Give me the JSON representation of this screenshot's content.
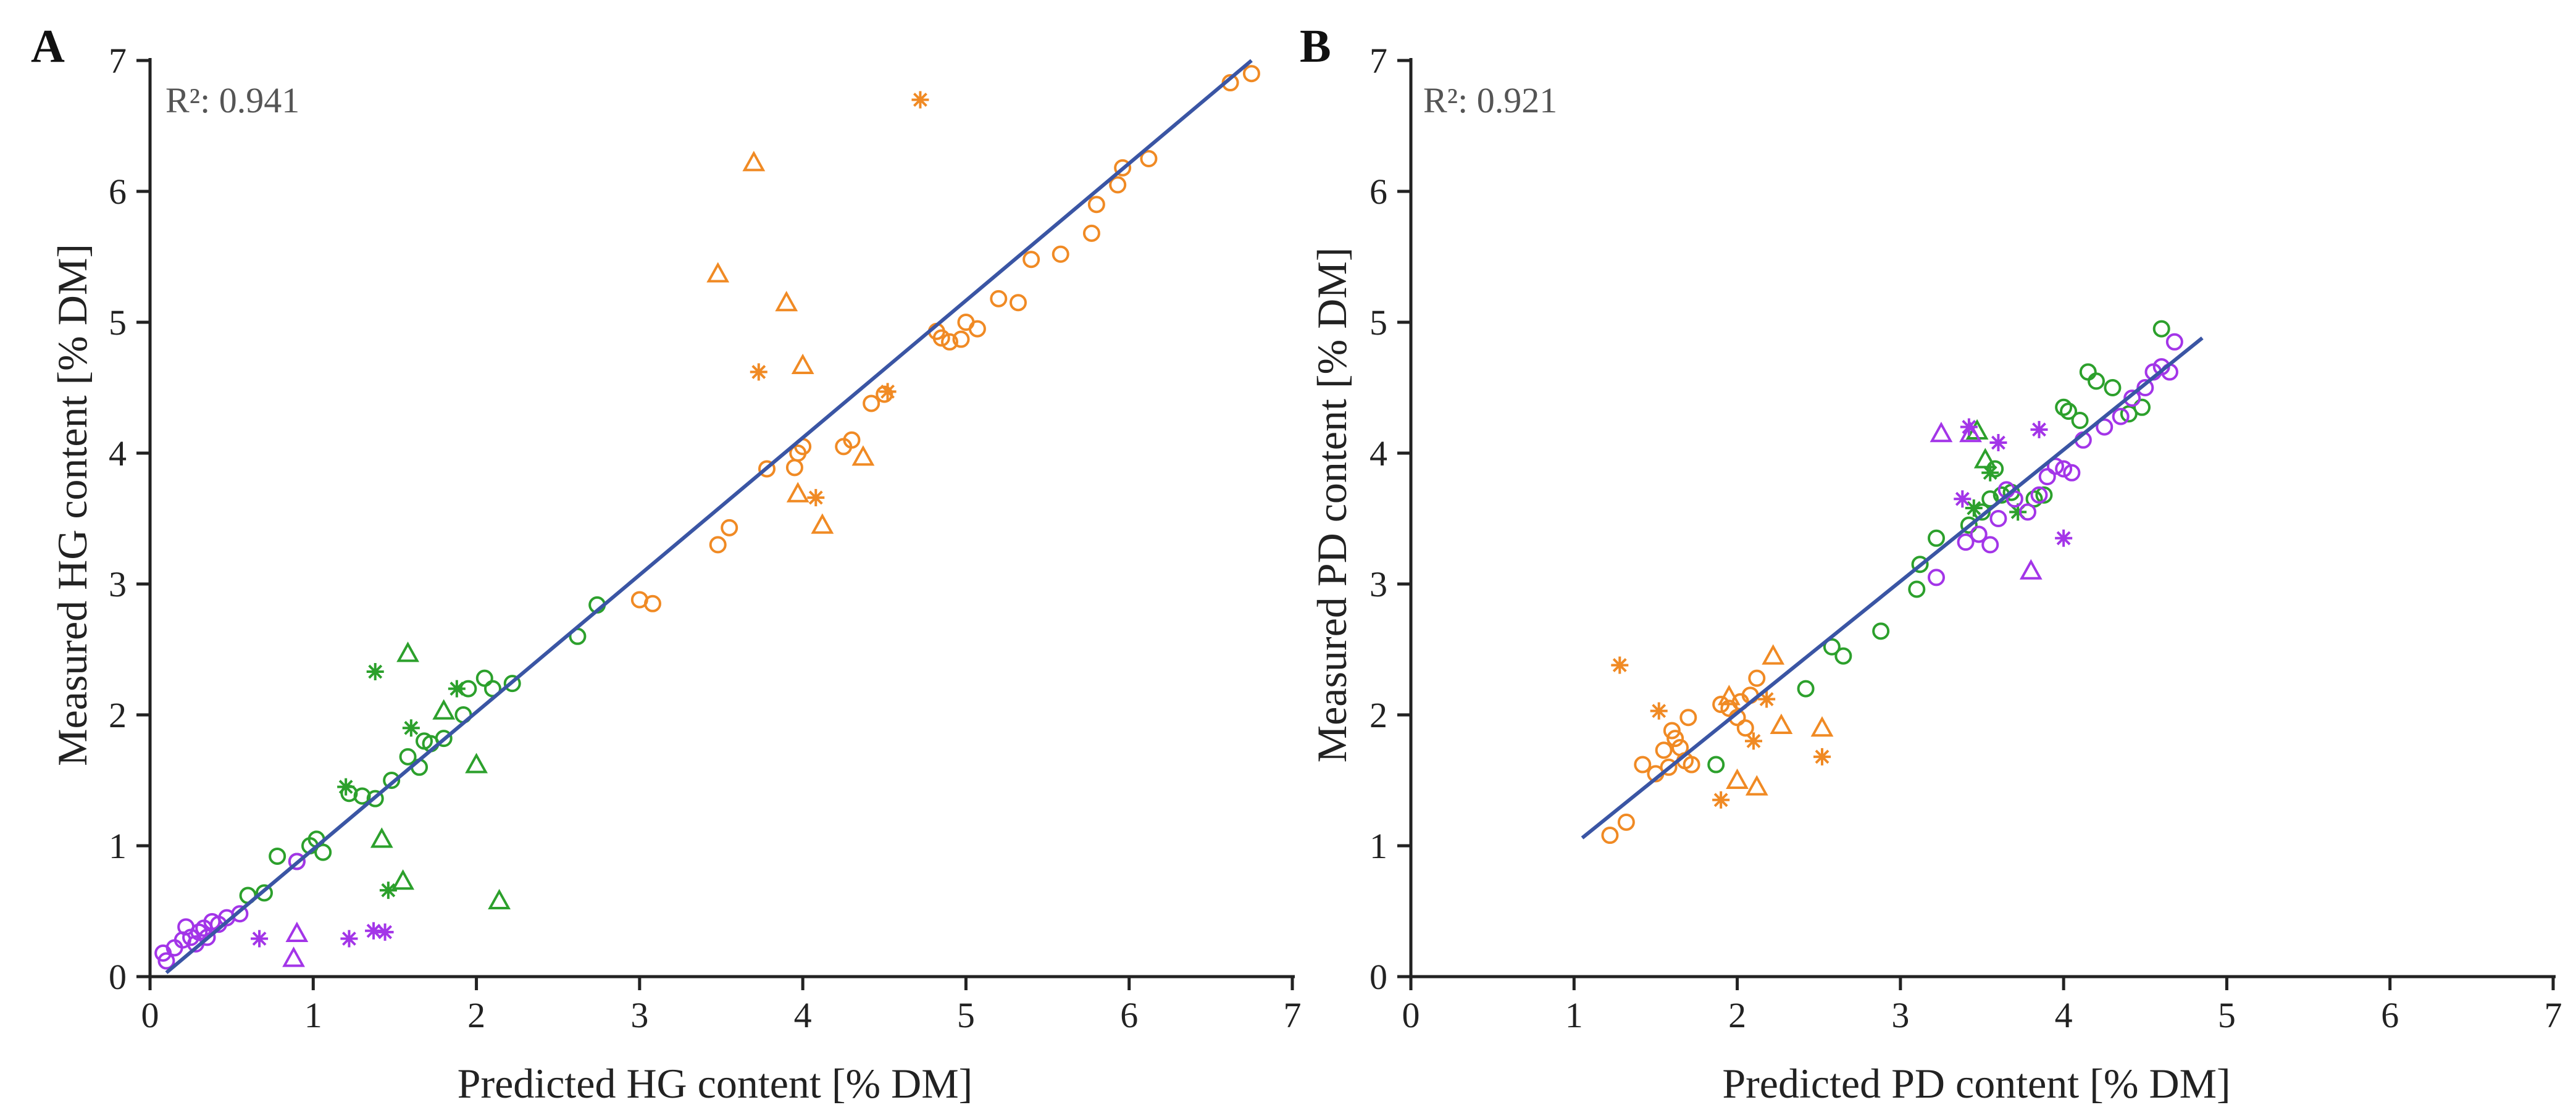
{
  "colors": {
    "orange": "#f08a24",
    "green": "#2ca02c",
    "purple": "#a335e8",
    "fit": "#3a55a4"
  },
  "chart_data": [
    {
      "type": "scatter",
      "panel": "A",
      "r2_label": "R²: 0.941",
      "xlabel": "Predicted HG content [% DM]",
      "ylabel": "Measured HG content [% DM]",
      "xlim": [
        0,
        7
      ],
      "ylim": [
        0,
        7
      ],
      "xticks": [
        "0",
        "1",
        "2",
        "3",
        "4",
        "5",
        "6",
        "7"
      ],
      "yticks": [
        "0",
        "1",
        "2",
        "3",
        "4",
        "5",
        "6",
        "7"
      ],
      "fit_line": {
        "x": [
          0.1,
          6.75
        ],
        "y": [
          0.03,
          7.0
        ]
      },
      "series": [
        {
          "name": "orange circles",
          "color": "orange",
          "marker": "circle",
          "x": [
            3.0,
            3.08,
            3.48,
            3.55,
            3.78,
            3.95,
            3.97,
            4.0,
            4.25,
            4.3,
            4.42,
            4.5,
            4.82,
            4.85,
            4.9,
            4.97,
            5.0,
            5.07,
            5.2,
            5.32,
            5.4,
            5.58,
            5.77,
            5.8,
            5.93,
            5.96,
            6.12,
            6.62,
            6.75
          ],
          "y": [
            2.88,
            2.85,
            3.3,
            3.43,
            3.88,
            3.89,
            4.0,
            4.05,
            4.05,
            4.1,
            4.38,
            4.45,
            4.93,
            4.88,
            4.85,
            4.87,
            5.0,
            4.95,
            5.18,
            5.15,
            5.48,
            5.52,
            5.68,
            5.9,
            6.05,
            6.18,
            6.25,
            6.83,
            6.9
          ]
        },
        {
          "name": "orange triangles",
          "color": "orange",
          "marker": "triangle",
          "x": [
            3.48,
            3.7,
            3.9,
            3.97,
            4.0,
            4.12,
            4.37
          ],
          "y": [
            5.37,
            6.22,
            5.15,
            3.69,
            4.67,
            3.45,
            3.97
          ]
        },
        {
          "name": "orange stars",
          "color": "orange",
          "marker": "star",
          "x": [
            3.73,
            4.08,
            4.52,
            4.72
          ],
          "y": [
            4.62,
            3.66,
            4.47,
            6.7
          ]
        },
        {
          "name": "green circles",
          "color": "green",
          "marker": "circle",
          "x": [
            0.6,
            0.7,
            0.78,
            0.9,
            0.98,
            1.02,
            1.06,
            1.22,
            1.3,
            1.38,
            1.48,
            1.58,
            1.65,
            1.68,
            1.72,
            1.8,
            1.92,
            1.95,
            2.05,
            2.1,
            2.22,
            2.62,
            2.74
          ],
          "y": [
            0.62,
            0.64,
            0.92,
            0.88,
            1.0,
            1.05,
            0.95,
            1.4,
            1.38,
            1.36,
            1.5,
            1.68,
            1.6,
            1.8,
            1.78,
            1.82,
            2.0,
            2.2,
            2.28,
            2.2,
            2.24,
            2.6,
            2.84
          ]
        },
        {
          "name": "green triangles",
          "color": "green",
          "marker": "triangle",
          "x": [
            1.42,
            1.55,
            1.58,
            1.8,
            2.0,
            2.14
          ],
          "y": [
            1.05,
            0.73,
            2.47,
            2.03,
            1.62,
            0.58
          ]
        },
        {
          "name": "green stars",
          "color": "green",
          "marker": "star",
          "x": [
            1.2,
            1.38,
            1.46,
            1.6,
            1.88
          ],
          "y": [
            1.45,
            2.33,
            0.66,
            1.9,
            2.2
          ]
        },
        {
          "name": "purple circles",
          "color": "purple",
          "marker": "circle",
          "x": [
            0.08,
            0.1,
            0.15,
            0.2,
            0.22,
            0.25,
            0.28,
            0.3,
            0.33,
            0.35,
            0.38,
            0.42,
            0.47,
            0.55,
            0.9
          ],
          "y": [
            0.18,
            0.12,
            0.22,
            0.28,
            0.38,
            0.3,
            0.25,
            0.34,
            0.37,
            0.3,
            0.42,
            0.4,
            0.45,
            0.48,
            0.88
          ]
        },
        {
          "name": "purple triangles",
          "color": "purple",
          "marker": "triangle",
          "x": [
            0.88,
            0.9
          ],
          "y": [
            0.14,
            0.33
          ]
        },
        {
          "name": "purple stars",
          "color": "purple",
          "marker": "star",
          "x": [
            0.67,
            1.22,
            1.37,
            1.44
          ],
          "y": [
            0.29,
            0.29,
            0.35,
            0.34
          ]
        }
      ]
    },
    {
      "type": "scatter",
      "panel": "B",
      "r2_label": "R²: 0.921",
      "xlabel": "Predicted PD content [% DM]",
      "ylabel": "Measured PD content [% DM]",
      "xlim": [
        0,
        7
      ],
      "ylim": [
        0,
        7
      ],
      "xticks": [
        "0",
        "1",
        "2",
        "3",
        "4",
        "5",
        "6",
        "7"
      ],
      "yticks": [
        "0",
        "1",
        "2",
        "3",
        "4",
        "5",
        "6",
        "7"
      ],
      "fit_line": {
        "x": [
          1.05,
          4.85
        ],
        "y": [
          1.06,
          4.88
        ]
      },
      "series": [
        {
          "name": "orange circles",
          "color": "orange",
          "marker": "circle",
          "x": [
            1.22,
            1.32,
            1.42,
            1.5,
            1.55,
            1.58,
            1.6,
            1.62,
            1.65,
            1.68,
            1.7,
            1.72,
            1.9,
            1.95,
            2.0,
            2.02,
            2.05,
            2.08,
            2.12
          ],
          "y": [
            1.08,
            1.18,
            1.62,
            1.55,
            1.73,
            1.6,
            1.88,
            1.82,
            1.75,
            1.65,
            1.98,
            1.62,
            2.08,
            2.05,
            1.98,
            2.1,
            1.9,
            2.15,
            2.28
          ]
        },
        {
          "name": "orange triangles",
          "color": "orange",
          "marker": "triangle",
          "x": [
            1.95,
            2.0,
            2.12,
            2.22,
            2.27,
            2.52
          ],
          "y": [
            2.14,
            1.5,
            1.45,
            2.45,
            1.92,
            1.9
          ]
        },
        {
          "name": "orange stars",
          "color": "orange",
          "marker": "star",
          "x": [
            1.28,
            1.52,
            1.9,
            2.1,
            2.18,
            2.52
          ],
          "y": [
            2.38,
            2.03,
            1.35,
            1.8,
            2.12,
            1.68
          ]
        },
        {
          "name": "green circles",
          "color": "green",
          "marker": "circle",
          "x": [
            1.87,
            2.42,
            2.58,
            2.65,
            2.88,
            3.1,
            3.12,
            3.22,
            3.42,
            3.5,
            3.55,
            3.58,
            3.62,
            3.68,
            3.82,
            3.88,
            4.0,
            4.03,
            4.1,
            4.15,
            4.2,
            4.3,
            4.4,
            4.48,
            4.6
          ],
          "y": [
            1.62,
            2.2,
            2.52,
            2.45,
            2.64,
            2.96,
            3.15,
            3.35,
            3.45,
            3.55,
            3.65,
            3.88,
            3.68,
            3.7,
            3.65,
            3.68,
            4.35,
            4.32,
            4.25,
            4.62,
            4.55,
            4.5,
            4.3,
            4.35,
            4.95
          ]
        },
        {
          "name": "green triangles",
          "color": "green",
          "marker": "triangle",
          "x": [
            3.47,
            3.52
          ],
          "y": [
            4.17,
            3.95
          ]
        },
        {
          "name": "green stars",
          "color": "green",
          "marker": "star",
          "x": [
            3.45,
            3.55,
            3.72
          ],
          "y": [
            3.58,
            3.85,
            3.55
          ]
        },
        {
          "name": "purple circles",
          "color": "purple",
          "marker": "circle",
          "x": [
            3.22,
            3.4,
            3.48,
            3.55,
            3.6,
            3.65,
            3.7,
            3.78,
            3.85,
            3.9,
            3.95,
            4.0,
            4.05,
            4.12,
            4.25,
            4.35,
            4.42,
            4.5,
            4.55,
            4.6,
            4.65,
            4.68
          ],
          "y": [
            3.05,
            3.32,
            3.38,
            3.3,
            3.5,
            3.72,
            3.65,
            3.55,
            3.68,
            3.82,
            3.9,
            3.88,
            3.85,
            4.1,
            4.2,
            4.28,
            4.42,
            4.5,
            4.62,
            4.66,
            4.62,
            4.85
          ]
        },
        {
          "name": "purple triangles",
          "color": "purple",
          "marker": "triangle",
          "x": [
            3.25,
            3.43,
            3.8
          ],
          "y": [
            4.15,
            4.15,
            3.1
          ]
        },
        {
          "name": "purple stars",
          "color": "purple",
          "marker": "star",
          "x": [
            3.38,
            3.42,
            3.6,
            3.85,
            4.0
          ],
          "y": [
            3.65,
            4.2,
            4.08,
            4.18,
            3.35
          ]
        }
      ]
    }
  ]
}
